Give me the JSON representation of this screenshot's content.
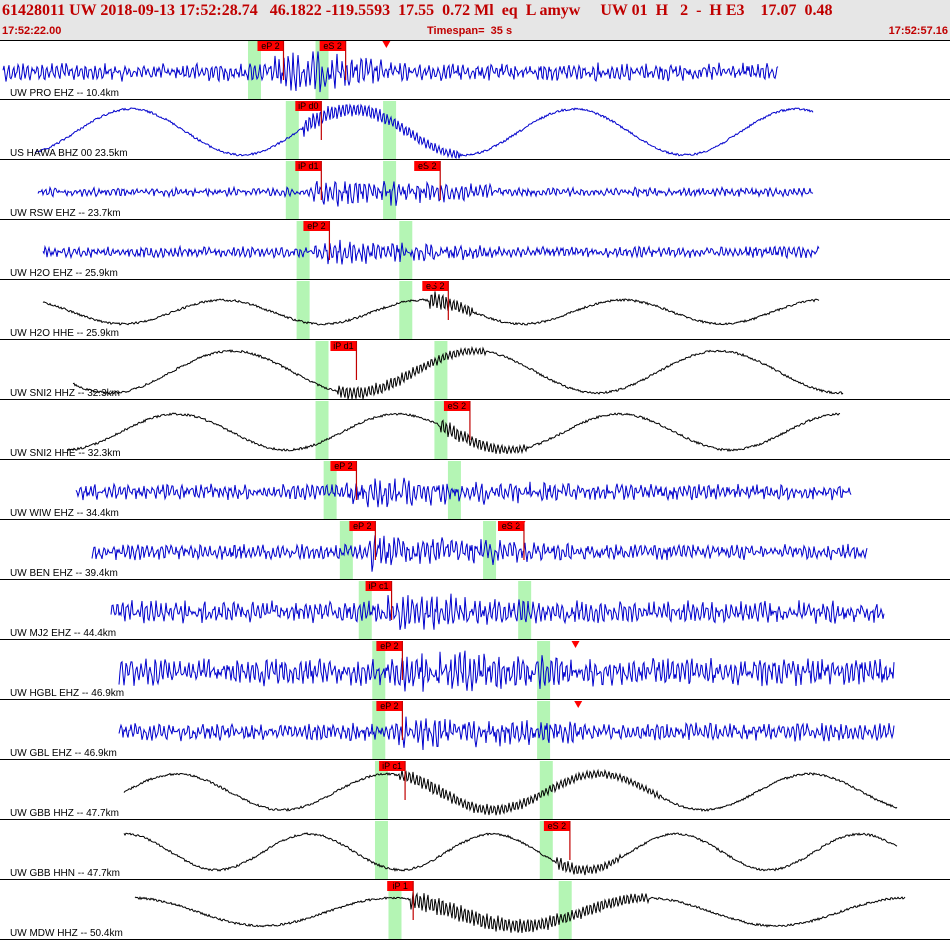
{
  "header": {
    "event_info": "61428011 UW 2018-09-13 17:52:28.74   46.1822 -119.5593  17.55  0.72 Ml  eq  L amyw     UW 01  H   2  -  H E3    17.07  0.48",
    "start_time": "17:52:22.00",
    "timespan_label": "Timespan=  35 s",
    "end_time": "17:52:57.16"
  },
  "colors": {
    "background": "#ffffff",
    "header_bg": "#e6e6e6",
    "header_text": "#c00000",
    "trace_blue": "#0000cc",
    "trace_black": "#000000",
    "pick_red": "#ff0000",
    "phase_window_green": "#b4f5b4"
  },
  "channels": [
    {
      "label": "UW PRO EHZ -- 10.4km",
      "color": "blue",
      "style": "noise",
      "amp": 8,
      "trace_start_s": 0.1,
      "trace_end_s": 28.8,
      "arrival_s": 10.0,
      "arrival_end_s": 14.5,
      "arrival_gain": 2.8,
      "green_windows_s": [
        9.4,
        11.9
      ],
      "picks": [
        {
          "label": "eP 2",
          "time_s": 9.9,
          "kind": "flag"
        },
        {
          "label": "eS 2",
          "time_s": 12.2,
          "kind": "flag"
        },
        {
          "label": "",
          "time_s": 14.3,
          "kind": "triangle"
        }
      ]
    },
    {
      "label": "US HAWA BHZ 00 23.5km",
      "color": "blue",
      "style": "wave",
      "amp": 23,
      "period_s": 8.2,
      "trace_start_s": 1.3,
      "trace_end_s": 30.1,
      "arrival_s": 11.2,
      "arrival_end_s": 17.0,
      "arrival_gain": 1.6,
      "green_windows_s": [
        10.8,
        14.4
      ],
      "picks": [
        {
          "label": "iP d0",
          "time_s": 11.3,
          "kind": "flag"
        }
      ]
    },
    {
      "label": "UW RSW EHZ -- 23.7km",
      "color": "blue",
      "style": "noise",
      "amp": 4,
      "trace_start_s": 1.4,
      "trace_end_s": 30.1,
      "arrival_s": 11.6,
      "arrival_end_s": 18.5,
      "arrival_gain": 3.8,
      "green_windows_s": [
        10.8,
        14.4
      ],
      "picks": [
        {
          "label": "iP d1",
          "time_s": 11.3,
          "kind": "flag"
        },
        {
          "label": "eS 2",
          "time_s": 15.7,
          "kind": "flag"
        },
        {
          "label": "",
          "time_s": 15.9,
          "kind": "triangle"
        }
      ]
    },
    {
      "label": "UW H2O EHZ -- 25.9km",
      "color": "blue",
      "style": "noise",
      "amp": 5,
      "trace_start_s": 1.6,
      "trace_end_s": 30.3,
      "arrival_s": 11.6,
      "arrival_end_s": 18.5,
      "arrival_gain": 2.4,
      "green_windows_s": [
        11.2,
        15.0
      ],
      "picks": [
        {
          "label": "eP 2",
          "time_s": 11.6,
          "kind": "flag"
        }
      ]
    },
    {
      "label": "UW H2O HHE -- 25.9km",
      "color": "black",
      "style": "wave",
      "amp": 12,
      "period_s": 7.4,
      "trace_start_s": 1.6,
      "trace_end_s": 30.3,
      "arrival_s": 15.9,
      "arrival_end_s": 17.5,
      "arrival_gain": 1.8,
      "green_windows_s": [
        11.2,
        15.0
      ],
      "picks": [
        {
          "label": "eS 2",
          "time_s": 16.0,
          "kind": "flag"
        },
        {
          "label": "",
          "time_s": 16.0,
          "kind": "triangle"
        }
      ]
    },
    {
      "label": "UW SNI2 HHZ -- 32.3km",
      "color": "black",
      "style": "wave",
      "amp": 21,
      "period_s": 9.0,
      "trace_start_s": 2.7,
      "trace_end_s": 31.2,
      "arrival_s": 12.5,
      "arrival_end_s": 18.0,
      "arrival_gain": 1.3,
      "green_windows_s": [
        11.9,
        16.3
      ],
      "picks": [
        {
          "label": "iP d1",
          "time_s": 12.6,
          "kind": "flag"
        }
      ]
    },
    {
      "label": "UW SNI2 HHE -- 32.3km",
      "color": "black",
      "style": "wave",
      "amp": 18,
      "period_s": 8.2,
      "trace_start_s": 2.5,
      "trace_end_s": 31.1,
      "arrival_s": 16.3,
      "arrival_end_s": 19.5,
      "arrival_gain": 1.4,
      "green_windows_s": [
        11.9,
        16.3
      ],
      "picks": [
        {
          "label": "eS 2",
          "time_s": 16.8,
          "kind": "flag"
        }
      ]
    },
    {
      "label": "UW WIW EHZ -- 34.4km",
      "color": "blue",
      "style": "noise",
      "amp": 7,
      "trace_start_s": 2.8,
      "trace_end_s": 31.5,
      "arrival_s": 12.8,
      "arrival_end_s": 22.0,
      "arrival_gain": 2.2,
      "green_windows_s": [
        12.2,
        16.8
      ],
      "picks": [
        {
          "label": "eP 2",
          "time_s": 12.6,
          "kind": "flag"
        }
      ]
    },
    {
      "label": "UW BEN EHZ -- 39.4km",
      "color": "blue",
      "style": "noise",
      "amp": 7,
      "trace_start_s": 3.4,
      "trace_end_s": 32.1,
      "arrival_s": 13.6,
      "arrival_end_s": 21.5,
      "arrival_gain": 2.4,
      "green_windows_s": [
        12.8,
        18.1
      ],
      "picks": [
        {
          "label": "eP 2",
          "time_s": 13.3,
          "kind": "flag"
        },
        {
          "label": "eS 2",
          "time_s": 18.8,
          "kind": "flag"
        },
        {
          "label": "",
          "time_s": 19.3,
          "kind": "triangle"
        }
      ]
    },
    {
      "label": "UW MJ2 EHZ -- 44.4km",
      "color": "blue",
      "style": "noise",
      "amp": 10,
      "trace_start_s": 4.1,
      "trace_end_s": 32.7,
      "arrival_s": 14.3,
      "arrival_end_s": 24.0,
      "arrival_gain": 1.8,
      "green_windows_s": [
        13.5,
        19.4
      ],
      "picks": [
        {
          "label": "iP c1",
          "time_s": 13.9,
          "kind": "flag"
        }
      ]
    },
    {
      "label": "UW HGBL EHZ -- 46.9km",
      "color": "blue",
      "style": "noise",
      "amp": 12,
      "trace_start_s": 4.4,
      "trace_end_s": 33.1,
      "arrival_s": 14.7,
      "arrival_end_s": 24.0,
      "arrival_gain": 1.8,
      "green_windows_s": [
        14.0,
        20.1
      ],
      "picks": [
        {
          "label": "eP 2",
          "time_s": 14.3,
          "kind": "flag"
        },
        {
          "label": "",
          "time_s": 21.3,
          "kind": "triangle"
        }
      ]
    },
    {
      "label": "UW GBL EHZ -- 46.9km",
      "color": "blue",
      "style": "noise",
      "amp": 8,
      "trace_start_s": 4.4,
      "trace_end_s": 33.1,
      "arrival_s": 14.7,
      "arrival_end_s": 23.5,
      "arrival_gain": 2.0,
      "green_windows_s": [
        14.0,
        20.1
      ],
      "picks": [
        {
          "label": "eP 2",
          "time_s": 14.3,
          "kind": "flag"
        },
        {
          "label": "",
          "time_s": 21.4,
          "kind": "triangle"
        }
      ]
    },
    {
      "label": "UW GBB HHZ -- 47.7km",
      "color": "black",
      "style": "wave",
      "amp": 18,
      "period_s": 7.8,
      "trace_start_s": 4.6,
      "trace_end_s": 33.2,
      "arrival_s": 14.8,
      "arrival_end_s": 24.5,
      "arrival_gain": 1.2,
      "green_windows_s": [
        14.1,
        20.2
      ],
      "picks": [
        {
          "label": "iP c1",
          "time_s": 14.4,
          "kind": "flag"
        }
      ]
    },
    {
      "label": "UW GBB HHN -- 47.7km",
      "color": "black",
      "style": "wave",
      "amp": 18,
      "period_s": 6.8,
      "trace_start_s": 4.6,
      "trace_end_s": 33.2,
      "arrival_s": 20.6,
      "arrival_end_s": 23.0,
      "arrival_gain": 1.2,
      "green_windows_s": [
        14.1,
        20.2
      ],
      "picks": [
        {
          "label": "eS 2",
          "time_s": 20.5,
          "kind": "flag"
        }
      ]
    },
    {
      "label": "UW MDW HHZ -- 50.4km",
      "color": "black",
      "style": "wave",
      "amp": 14,
      "period_s": 9.5,
      "trace_start_s": 5.0,
      "trace_end_s": 33.5,
      "arrival_s": 15.2,
      "arrival_end_s": 24.0,
      "arrival_gain": 1.8,
      "green_windows_s": [
        14.6,
        20.9
      ],
      "picks": [
        {
          "label": "iP 1",
          "time_s": 14.7,
          "kind": "flag"
        }
      ]
    }
  ]
}
